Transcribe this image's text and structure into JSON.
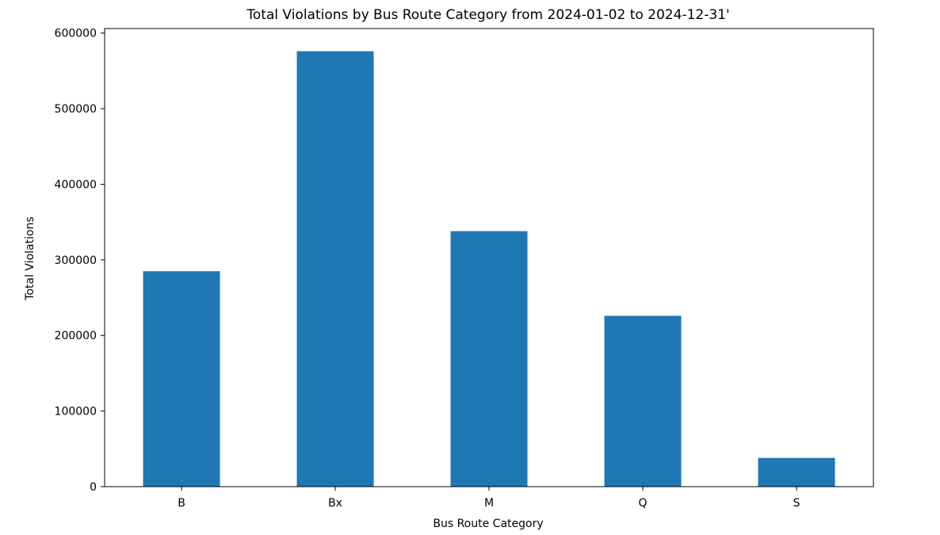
{
  "chart_data": {
    "type": "bar",
    "title": "Total Violations by Bus Route Category from 2024-01-02 to 2024-12-31'",
    "xlabel": "Bus Route Category",
    "ylabel": "Total Violations",
    "categories": [
      "B",
      "Bx",
      "M",
      "Q",
      "S"
    ],
    "values": [
      285000,
      576000,
      338000,
      226000,
      38000
    ],
    "ylim": [
      0,
      606000
    ],
    "yticks": [
      0,
      100000,
      200000,
      300000,
      400000,
      500000,
      600000
    ],
    "ytick_labels": [
      "0",
      "100000",
      "200000",
      "300000",
      "400000",
      "500000",
      "600000"
    ],
    "bar_color": "#1f77b4",
    "grid": false,
    "legend": false
  }
}
